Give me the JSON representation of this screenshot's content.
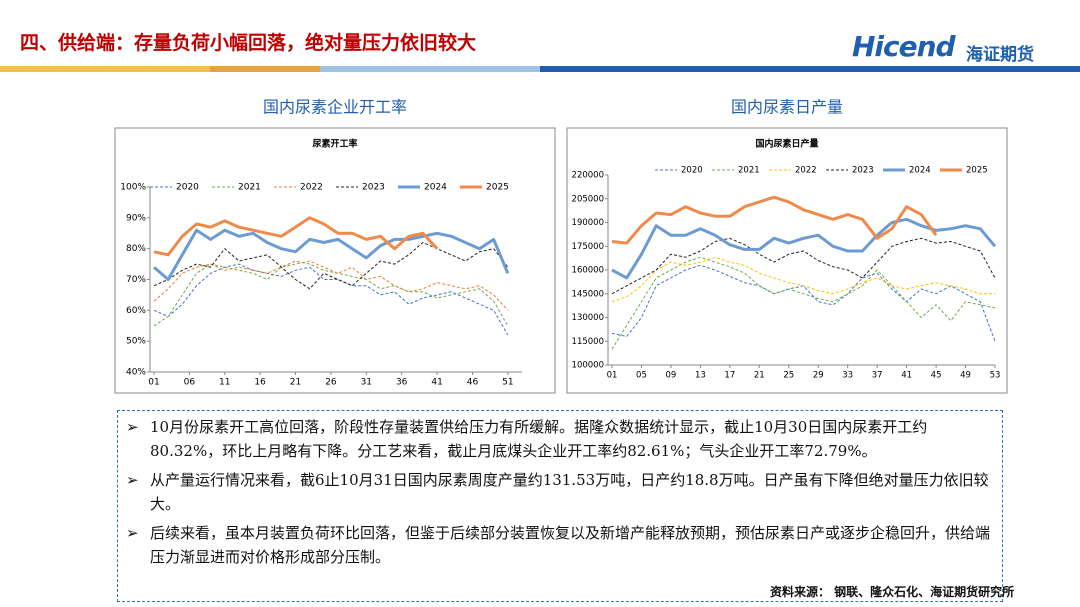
{
  "header": {
    "title": "四、供给端：存量负荷小幅回落，绝对量压力依旧较大"
  },
  "logo": {
    "brand": "Hicend",
    "name": "海证期货"
  },
  "chart_data": [
    {
      "type": "line",
      "title": "国内尿素企业开工率",
      "subtitle": "尿素开工率",
      "x": [
        1,
        3,
        5,
        7,
        9,
        11,
        13,
        15,
        17,
        19,
        21,
        23,
        25,
        27,
        29,
        31,
        33,
        35,
        37,
        39,
        41,
        43,
        45,
        47,
        49,
        51
      ],
      "xlim": [
        1,
        53
      ],
      "xticks": [
        {
          "value": 1,
          "label": "01"
        },
        {
          "value": 6,
          "label": "06"
        },
        11,
        16,
        21,
        26,
        31,
        36,
        41,
        46,
        51
      ],
      "ylim": [
        40,
        100
      ],
      "yticks": [
        {
          "value": 40,
          "label": "40%"
        },
        {
          "value": 50,
          "label": "50%"
        },
        {
          "value": 60,
          "label": "60%"
        },
        {
          "value": 70,
          "label": "70%"
        },
        {
          "value": 80,
          "label": "80%"
        },
        {
          "value": 90,
          "label": "90%"
        },
        {
          "value": 100,
          "label": "100%"
        }
      ],
      "legend": "top",
      "series": [
        {
          "name": "2020",
          "color": "#4472c4",
          "dashed": true,
          "values": [
            60,
            58,
            62,
            68,
            72,
            74,
            75,
            73,
            72,
            71,
            73,
            74,
            70,
            70,
            68,
            68,
            65,
            66,
            62,
            64,
            65,
            66,
            64,
            62,
            60,
            52
          ]
        },
        {
          "name": "2021",
          "color": "#70ad47",
          "dashed": true,
          "values": [
            55,
            58,
            65,
            72,
            75,
            74,
            73,
            72,
            70,
            74,
            76,
            75,
            73,
            72,
            71,
            70,
            67,
            68,
            66,
            66,
            64,
            65,
            66,
            67,
            63,
            55
          ]
        },
        {
          "name": "2022",
          "color": "#ed7d31",
          "dashed": true,
          "values": [
            63,
            67,
            72,
            74,
            75,
            73,
            74,
            73,
            72,
            74,
            75,
            76,
            74,
            72,
            74,
            70,
            71,
            68,
            66,
            67,
            69,
            68,
            67,
            68,
            65,
            60
          ]
        },
        {
          "name": "2023",
          "color": "#222222",
          "dashed": true,
          "values": [
            68,
            70,
            73,
            75,
            74,
            80,
            76,
            77,
            78,
            74,
            70,
            67,
            72,
            70,
            68,
            72,
            76,
            75,
            78,
            82,
            80,
            78,
            76,
            79,
            80,
            74
          ]
        },
        {
          "name": "2024",
          "color": "#6b9bd2",
          "dashed": false,
          "values": [
            74,
            70,
            78,
            86,
            83,
            86,
            84,
            85,
            82,
            80,
            79,
            83,
            82,
            83,
            80,
            77,
            81,
            83,
            83,
            84,
            85,
            84,
            82,
            80,
            83,
            72
          ]
        },
        {
          "name": "2025",
          "color": "#f08a4b",
          "dashed": false,
          "values": [
            79,
            78,
            84,
            88,
            87,
            89,
            87,
            86,
            85,
            84,
            87,
            90,
            88,
            85,
            85,
            83,
            84,
            80,
            84,
            85,
            80,
            null,
            null,
            null,
            null,
            null
          ]
        }
      ]
    },
    {
      "type": "line",
      "title": "国内尿素日产量",
      "subtitle": "国内尿素日产量",
      "x": [
        1,
        3,
        5,
        7,
        9,
        11,
        13,
        15,
        17,
        19,
        21,
        23,
        25,
        27,
        29,
        31,
        33,
        35,
        37,
        39,
        41,
        43,
        45,
        47,
        49,
        51,
        53
      ],
      "xlim": [
        1,
        53
      ],
      "xticks": [
        {
          "value": 1,
          "label": "01"
        },
        {
          "value": 5,
          "label": "05"
        },
        {
          "value": 9,
          "label": "09"
        },
        13,
        17,
        21,
        25,
        29,
        33,
        37,
        41,
        45,
        49,
        53
      ],
      "ylim": [
        100000,
        220000
      ],
      "yticks": [
        100000,
        115000,
        130000,
        145000,
        160000,
        175000,
        190000,
        205000,
        220000
      ],
      "legend": "top",
      "series": [
        {
          "name": "2020",
          "color": "#4472c4",
          "dashed": true,
          "values": [
            120000,
            118000,
            130000,
            150000,
            155000,
            160000,
            163000,
            160000,
            156000,
            152000,
            150000,
            145000,
            148000,
            150000,
            140000,
            138000,
            145000,
            155000,
            158000,
            148000,
            140000,
            148000,
            145000,
            150000,
            145000,
            140000,
            115000
          ]
        },
        {
          "name": "2021",
          "color": "#70ad47",
          "dashed": true,
          "values": [
            110000,
            125000,
            140000,
            155000,
            160000,
            165000,
            168000,
            165000,
            162000,
            158000,
            150000,
            145000,
            148000,
            145000,
            142000,
            140000,
            145000,
            150000,
            160000,
            150000,
            140000,
            130000,
            138000,
            128000,
            140000,
            138000,
            136000
          ]
        },
        {
          "name": "2022",
          "color": "#ffc000",
          "dashed": true,
          "values": [
            140000,
            143000,
            150000,
            160000,
            165000,
            163000,
            165000,
            168000,
            165000,
            163000,
            158000,
            155000,
            152000,
            150000,
            147000,
            145000,
            148000,
            152000,
            155000,
            150000,
            148000,
            150000,
            152000,
            150000,
            148000,
            145000,
            145000
          ]
        },
        {
          "name": "2023",
          "color": "#222222",
          "dashed": true,
          "values": [
            145000,
            150000,
            155000,
            160000,
            170000,
            168000,
            172000,
            178000,
            180000,
            176000,
            170000,
            165000,
            170000,
            172000,
            166000,
            162000,
            160000,
            155000,
            165000,
            175000,
            178000,
            180000,
            177000,
            178000,
            175000,
            172000,
            155000
          ]
        },
        {
          "name": "2024",
          "color": "#6b9bd2",
          "dashed": false,
          "values": [
            160000,
            155000,
            170000,
            188000,
            182000,
            182000,
            186000,
            182000,
            176000,
            173000,
            173000,
            180000,
            177000,
            180000,
            182000,
            175000,
            172000,
            172000,
            182000,
            190000,
            192000,
            188000,
            185000,
            186000,
            188000,
            186000,
            175000
          ]
        },
        {
          "name": "2025",
          "color": "#f08a4b",
          "dashed": false,
          "values": [
            178000,
            177000,
            188000,
            196000,
            195000,
            200000,
            196000,
            194000,
            194000,
            200000,
            203000,
            206000,
            203000,
            198000,
            195000,
            192000,
            195000,
            192000,
            180000,
            186000,
            200000,
            195000,
            182000,
            null,
            null,
            null,
            null
          ]
        }
      ]
    }
  ],
  "bullets": [
    "10月份尿素开工高位回落，阶段性存量装置供给压力有所缓解。据隆众数据统计显示，截止10月30日国内尿素开工约80.32%，环比上月略有下降。分工艺来看，截止月底煤头企业开工率约82.61%；气头企业开工率72.79%。",
    "从产量运行情况来看，截6止10月31日国内尿素周度产量约131.53万吨，日产约18.8万吨。日产虽有下降但绝对量压力依旧较大。",
    "后续来看，虽本月装置负荷环比回落，但鉴于后续部分装置恢复以及新增产能释放预期，预估尿素日产或逐步企稳回升，供给端压力渐显进而对价格形成部分压制。"
  ],
  "source": "资料来源：  钢联、隆众石化、海证期货研究所"
}
